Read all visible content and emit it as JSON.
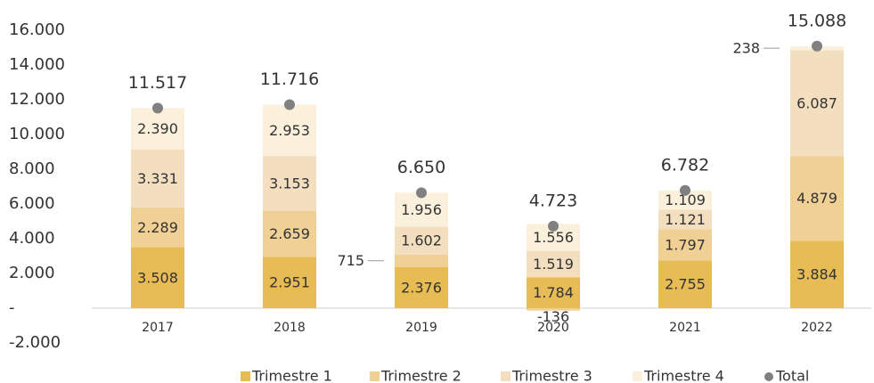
{
  "chart_data": {
    "type": "bar",
    "stacked": true,
    "categories": [
      "2017",
      "2018",
      "2019",
      "2020",
      "2021",
      "2022"
    ],
    "series": [
      {
        "name": "Trimestre 1",
        "color": "#e8bc55",
        "values": [
          3508,
          2951,
          2376,
          1784,
          2755,
          3884
        ],
        "value_labels": [
          "3.508",
          "2.951",
          "2.376",
          "1.784",
          "2.755",
          "3.884"
        ]
      },
      {
        "name": "Trimestre 2",
        "color": "#f0d094",
        "values": [
          2289,
          2659,
          715,
          -136,
          1797,
          4879
        ],
        "value_labels": [
          "2.289",
          "2.659",
          "715",
          "-136",
          "1.797",
          "4.879"
        ]
      },
      {
        "name": "Trimestre 3",
        "color": "#f3dfbf",
        "values": [
          3331,
          3153,
          1602,
          1519,
          1121,
          6087
        ],
        "value_labels": [
          "3.331",
          "3.153",
          "1.602",
          "1.519",
          "1.121",
          "6.087"
        ]
      },
      {
        "name": "Trimestre 4",
        "color": "#fbf0dc",
        "values": [
          2390,
          2953,
          1956,
          1556,
          1109,
          238
        ],
        "value_labels": [
          "2.390",
          "2.953",
          "1.956",
          "1.556",
          "1.109",
          "238"
        ]
      },
      {
        "name": "Total",
        "type": "scatter",
        "color": "#808080",
        "values": [
          11517,
          11716,
          6650,
          4723,
          6782,
          15088
        ],
        "value_labels": [
          "11.517",
          "11.716",
          "6.650",
          "4.723",
          "6.782",
          "15.088"
        ]
      }
    ],
    "ylim": [
      -2000,
      16000
    ],
    "yticks": [
      {
        "value": -2000,
        "label": "-2.000"
      },
      {
        "value": 0,
        "label": "-"
      },
      {
        "value": 2000,
        "label": "2.000"
      },
      {
        "value": 4000,
        "label": "4.000"
      },
      {
        "value": 6000,
        "label": "6.000"
      },
      {
        "value": 8000,
        "label": "8.000"
      },
      {
        "value": 10000,
        "label": "10.000"
      },
      {
        "value": 12000,
        "label": "12.000"
      },
      {
        "value": 14000,
        "label": "14.000"
      },
      {
        "value": 16000,
        "label": "16.000"
      }
    ],
    "legend": "bottom"
  }
}
